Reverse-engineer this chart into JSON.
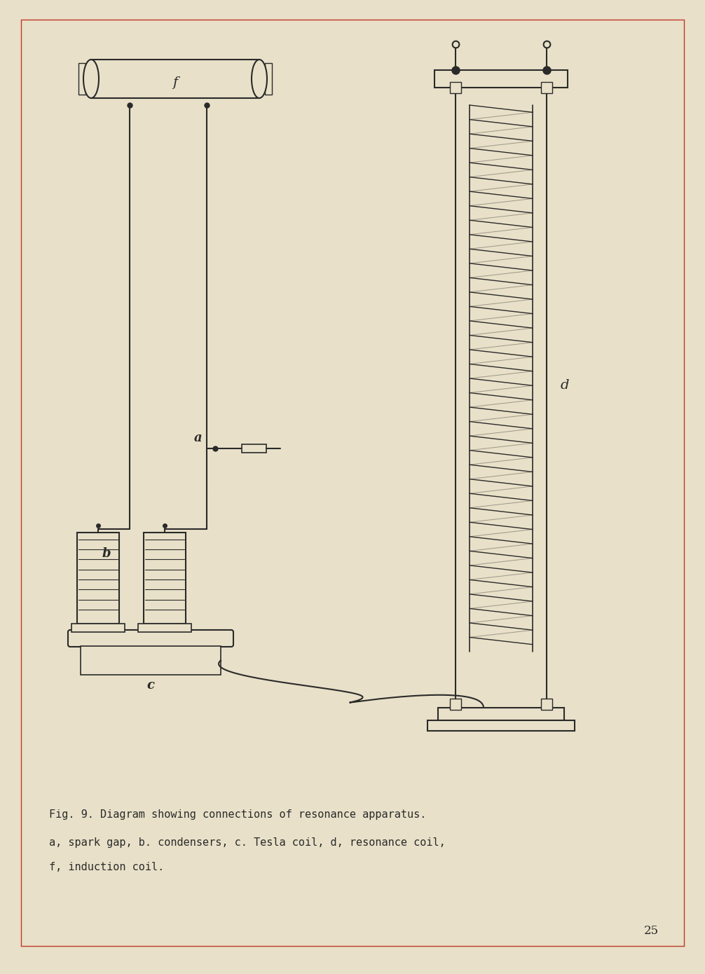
{
  "bg_color": "#e8e0c8",
  "line_color": "#2a2a2a",
  "text_color": "#2a2a2a",
  "red_line_color": "#c0392b",
  "caption_line1": "Fig. 9. Diagram showing connections of resonance apparatus.",
  "caption_line2": "a, spark gap, b. condensers, c. Tesla coil, d, resonance coil,",
  "caption_line3": "f, induction coil.",
  "page_number": "25",
  "label_a": "a",
  "label_b": "b",
  "label_c": "c",
  "label_d": "d",
  "label_f": "f"
}
